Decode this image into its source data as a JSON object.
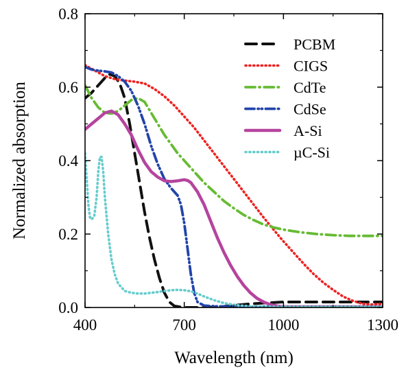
{
  "chart_data": {
    "type": "line",
    "title": "",
    "xlabel": "Wavelength (nm)",
    "ylabel": "Normalized absorption",
    "xlim": [
      400,
      1300
    ],
    "ylim": [
      0.0,
      0.8
    ],
    "x_ticks": [
      400,
      700,
      1000,
      1300
    ],
    "x_tick_labels": [
      "400",
      "700",
      "1000",
      "1300"
    ],
    "y_ticks": [
      0.0,
      0.2,
      0.4,
      0.6,
      0.8
    ],
    "y_tick_labels": [
      "0.0",
      "0.2",
      "0.4",
      "0.6",
      "0.8"
    ],
    "grid": false,
    "legend_position": "top-right",
    "series": [
      {
        "name": "PCBM",
        "color": "#111111",
        "dash": "dash",
        "points": [
          [
            400,
            0.57
          ],
          [
            420,
            0.585
          ],
          [
            440,
            0.605
          ],
          [
            460,
            0.625
          ],
          [
            475,
            0.635
          ],
          [
            490,
            0.63
          ],
          [
            505,
            0.61
          ],
          [
            520,
            0.57
          ],
          [
            535,
            0.5
          ],
          [
            550,
            0.42
          ],
          [
            565,
            0.34
          ],
          [
            580,
            0.26
          ],
          [
            595,
            0.19
          ],
          [
            610,
            0.13
          ],
          [
            625,
            0.08
          ],
          [
            640,
            0.04
          ],
          [
            655,
            0.015
          ],
          [
            670,
            0.004
          ],
          [
            700,
            0.0
          ],
          [
            760,
            0.0
          ],
          [
            820,
            0.003
          ],
          [
            900,
            0.01
          ],
          [
            1000,
            0.015
          ],
          [
            1100,
            0.015
          ],
          [
            1200,
            0.015
          ],
          [
            1300,
            0.015
          ]
        ]
      },
      {
        "name": "CIGS",
        "color": "#ee2222",
        "dash": "dot",
        "points": [
          [
            400,
            0.66
          ],
          [
            430,
            0.645
          ],
          [
            460,
            0.63
          ],
          [
            490,
            0.622
          ],
          [
            520,
            0.618
          ],
          [
            550,
            0.615
          ],
          [
            580,
            0.61
          ],
          [
            610,
            0.595
          ],
          [
            640,
            0.575
          ],
          [
            670,
            0.55
          ],
          [
            700,
            0.52
          ],
          [
            730,
            0.49
          ],
          [
            760,
            0.455
          ],
          [
            790,
            0.42
          ],
          [
            820,
            0.385
          ],
          [
            850,
            0.35
          ],
          [
            880,
            0.315
          ],
          [
            910,
            0.28
          ],
          [
            940,
            0.245
          ],
          [
            970,
            0.212
          ],
          [
            1000,
            0.18
          ],
          [
            1030,
            0.15
          ],
          [
            1060,
            0.12
          ],
          [
            1090,
            0.092
          ],
          [
            1120,
            0.068
          ],
          [
            1150,
            0.048
          ],
          [
            1180,
            0.03
          ],
          [
            1210,
            0.018
          ],
          [
            1240,
            0.01
          ],
          [
            1270,
            0.008
          ],
          [
            1300,
            0.01
          ]
        ]
      },
      {
        "name": "CdTe",
        "color": "#66bb33",
        "dash": "dashdot",
        "points": [
          [
            400,
            0.605
          ],
          [
            420,
            0.57
          ],
          [
            440,
            0.545
          ],
          [
            460,
            0.53
          ],
          [
            480,
            0.528
          ],
          [
            500,
            0.535
          ],
          [
            520,
            0.55
          ],
          [
            540,
            0.565
          ],
          [
            560,
            0.57
          ],
          [
            580,
            0.56
          ],
          [
            600,
            0.53
          ],
          [
            620,
            0.5
          ],
          [
            640,
            0.47
          ],
          [
            660,
            0.445
          ],
          [
            680,
            0.42
          ],
          [
            700,
            0.4
          ],
          [
            730,
            0.37
          ],
          [
            760,
            0.34
          ],
          [
            790,
            0.315
          ],
          [
            820,
            0.29
          ],
          [
            850,
            0.27
          ],
          [
            880,
            0.252
          ],
          [
            910,
            0.238
          ],
          [
            940,
            0.226
          ],
          [
            970,
            0.218
          ],
          [
            1000,
            0.212
          ],
          [
            1050,
            0.205
          ],
          [
            1100,
            0.2
          ],
          [
            1150,
            0.197
          ],
          [
            1200,
            0.195
          ],
          [
            1250,
            0.195
          ],
          [
            1300,
            0.195
          ]
        ]
      },
      {
        "name": "CdSe",
        "color": "#2244aa",
        "dash": "dashdotdot",
        "points": [
          [
            400,
            0.655
          ],
          [
            420,
            0.648
          ],
          [
            440,
            0.645
          ],
          [
            460,
            0.643
          ],
          [
            480,
            0.64
          ],
          [
            500,
            0.63
          ],
          [
            520,
            0.615
          ],
          [
            540,
            0.59
          ],
          [
            560,
            0.55
          ],
          [
            580,
            0.5
          ],
          [
            600,
            0.44
          ],
          [
            620,
            0.39
          ],
          [
            640,
            0.35
          ],
          [
            660,
            0.325
          ],
          [
            680,
            0.305
          ],
          [
            690,
            0.28
          ],
          [
            700,
            0.23
          ],
          [
            710,
            0.16
          ],
          [
            720,
            0.09
          ],
          [
            730,
            0.04
          ],
          [
            740,
            0.015
          ],
          [
            760,
            0.005
          ],
          [
            800,
            0.003
          ],
          [
            900,
            0.002
          ],
          [
            1000,
            0.002
          ],
          [
            1100,
            0.002
          ],
          [
            1200,
            0.002
          ],
          [
            1300,
            0.002
          ]
        ]
      },
      {
        "name": "A-Si",
        "color": "#b5449e",
        "dash": "solid",
        "points": [
          [
            400,
            0.485
          ],
          [
            420,
            0.5
          ],
          [
            440,
            0.515
          ],
          [
            460,
            0.53
          ],
          [
            480,
            0.535
          ],
          [
            500,
            0.525
          ],
          [
            520,
            0.5
          ],
          [
            540,
            0.47
          ],
          [
            560,
            0.43
          ],
          [
            580,
            0.395
          ],
          [
            600,
            0.37
          ],
          [
            620,
            0.355
          ],
          [
            640,
            0.345
          ],
          [
            660,
            0.343
          ],
          [
            680,
            0.345
          ],
          [
            700,
            0.348
          ],
          [
            710,
            0.346
          ],
          [
            720,
            0.34
          ],
          [
            740,
            0.315
          ],
          [
            760,
            0.28
          ],
          [
            780,
            0.235
          ],
          [
            800,
            0.19
          ],
          [
            820,
            0.15
          ],
          [
            840,
            0.115
          ],
          [
            860,
            0.085
          ],
          [
            880,
            0.06
          ],
          [
            900,
            0.04
          ],
          [
            920,
            0.025
          ],
          [
            940,
            0.015
          ],
          [
            960,
            0.008
          ],
          [
            980,
            0.004
          ],
          [
            1000,
            0.002
          ],
          [
            1100,
            0.002
          ],
          [
            1200,
            0.002
          ],
          [
            1300,
            0.002
          ]
        ]
      },
      {
        "name": "µC-Si",
        "color": "#66cccc",
        "dash": "dot",
        "points": [
          [
            400,
            0.42
          ],
          [
            405,
            0.35
          ],
          [
            410,
            0.28
          ],
          [
            415,
            0.245
          ],
          [
            420,
            0.24
          ],
          [
            428,
            0.25
          ],
          [
            435,
            0.3
          ],
          [
            440,
            0.37
          ],
          [
            445,
            0.41
          ],
          [
            450,
            0.41
          ],
          [
            455,
            0.37
          ],
          [
            460,
            0.3
          ],
          [
            470,
            0.2
          ],
          [
            480,
            0.13
          ],
          [
            490,
            0.09
          ],
          [
            500,
            0.065
          ],
          [
            520,
            0.045
          ],
          [
            540,
            0.04
          ],
          [
            560,
            0.038
          ],
          [
            580,
            0.038
          ],
          [
            600,
            0.04
          ],
          [
            620,
            0.042
          ],
          [
            640,
            0.045
          ],
          [
            660,
            0.047
          ],
          [
            680,
            0.048
          ],
          [
            700,
            0.047
          ],
          [
            720,
            0.044
          ],
          [
            740,
            0.038
          ],
          [
            760,
            0.03
          ],
          [
            790,
            0.02
          ],
          [
            820,
            0.012
          ],
          [
            860,
            0.006
          ],
          [
            900,
            0.003
          ],
          [
            1000,
            0.002
          ],
          [
            1100,
            0.002
          ],
          [
            1200,
            0.002
          ],
          [
            1300,
            0.002
          ]
        ]
      }
    ]
  }
}
